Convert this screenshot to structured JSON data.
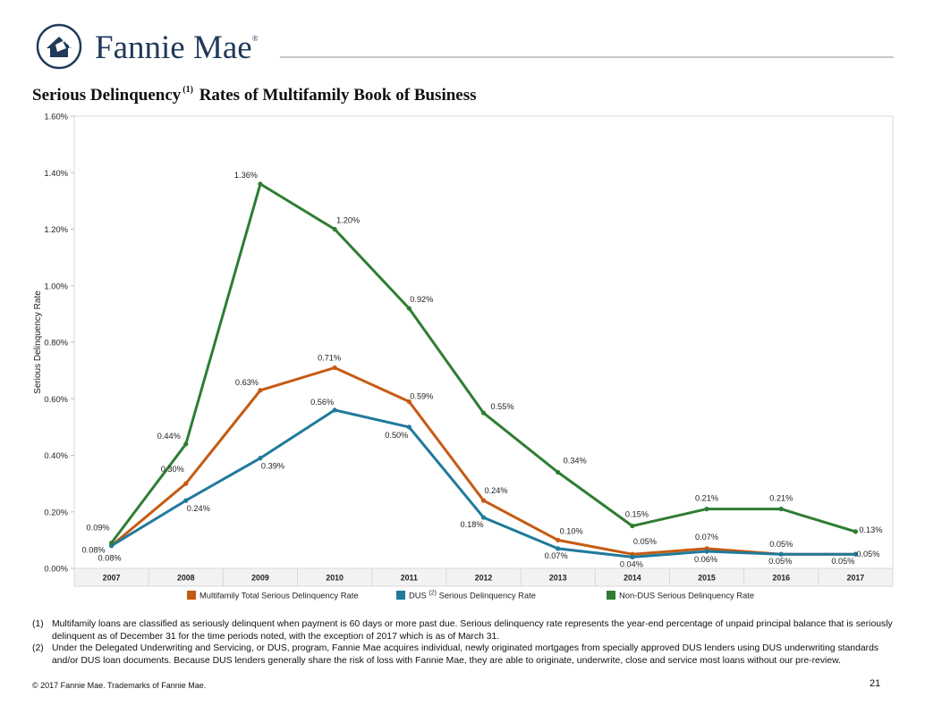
{
  "brand": {
    "name": "Fannie Mae",
    "mark": "®"
  },
  "title": {
    "text_before": "Serious Delinquency",
    "superscript": "(1)",
    "text_after": "Rates of Multifamily Book of Business"
  },
  "chart_data": {
    "type": "line",
    "title": "Serious Delinquency (1) Rates of Multifamily Book of Business",
    "ylabel": "Serious Delinquency Rate",
    "xlabel": "",
    "categories": [
      "2007",
      "2008",
      "2009",
      "2010",
      "2011",
      "2012",
      "2013",
      "2014",
      "2015",
      "2016",
      "2017"
    ],
    "ylim": [
      0,
      1.6
    ],
    "yticks": [
      0,
      0.2,
      0.4,
      0.6,
      0.8,
      1.0,
      1.2,
      1.4,
      1.6
    ],
    "ytick_labels": [
      "0.00%",
      "0.20%",
      "0.40%",
      "0.60%",
      "0.80%",
      "1.00%",
      "1.20%",
      "1.40%",
      "1.60%"
    ],
    "grid": false,
    "legend_position": "bottom",
    "series": [
      {
        "name": "Multifamily Total Serious Delinquency Rate",
        "color": "#c55a11",
        "values": [
          0.08,
          0.3,
          0.63,
          0.71,
          0.59,
          0.24,
          0.1,
          0.05,
          0.07,
          0.05,
          0.05
        ],
        "labels": [
          "0.08%",
          "0.30%",
          "0.63%",
          "0.71%",
          "0.59%",
          "0.24%",
          "0.10%",
          "0.05%",
          "0.07%",
          "0.05%",
          "0.05%"
        ]
      },
      {
        "name": "DUS Serious Delinquency Rate",
        "legend_prefix": "DUS",
        "legend_superscript": "(2)",
        "legend_suffix": "Serious Delinquency Rate",
        "color": "#1f7a9c",
        "values": [
          0.08,
          0.24,
          0.39,
          0.56,
          0.5,
          0.18,
          0.07,
          0.04,
          0.06,
          0.05,
          0.05
        ],
        "labels": [
          "0.08%",
          "0.24%",
          "0.39%",
          "0.56%",
          "0.50%",
          "0.18%",
          "0.07%",
          "0.04%",
          "0.06%",
          "0.05%",
          "0.05%"
        ]
      },
      {
        "name": "Non-DUS Serious Delinquency Rate",
        "color": "#2e7d32",
        "values": [
          0.09,
          0.44,
          1.36,
          1.2,
          0.92,
          0.55,
          0.34,
          0.15,
          0.21,
          0.21,
          0.13
        ],
        "labels": [
          "0.09%",
          "0.44%",
          "1.36%",
          "1.20%",
          "0.92%",
          "0.55%",
          "0.34%",
          "0.15%",
          "0.21%",
          "0.21%",
          "0.13%"
        ]
      }
    ]
  },
  "footnotes": [
    {
      "num": "(1)",
      "text": "Multifamily loans are classified as seriously delinquent when payment is 60 days or more past due. Serious delinquency rate represents the year-end percentage of unpaid principal balance that is seriously delinquent as of December 31 for the time periods noted, with the exception of 2017 which is as of  March 31."
    },
    {
      "num": "(2)",
      "text": "Under the Delegated Underwriting and Servicing, or DUS, program, Fannie Mae acquires individual, newly originated mortgages from specially approved DUS lenders using DUS underwriting standards and/or DUS loan documents. Because DUS lenders generally share the risk of loss with Fannie Mae, they are able to originate, underwrite, close and service most loans without our pre-review."
    }
  ],
  "copyright": "© 2017 Fannie Mae. Trademarks of Fannie Mae.",
  "page_number": "21"
}
